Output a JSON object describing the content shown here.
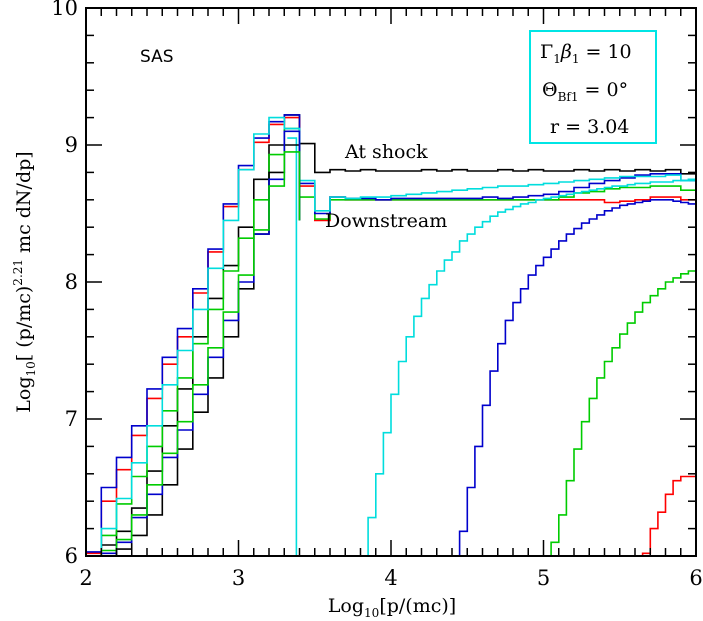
{
  "chart_data": {
    "type": "line",
    "step": true,
    "xlabel": {
      "prefix": "Log",
      "sub": "10",
      "main": "[p/(mc)]"
    },
    "ylabel": {
      "prefix": "Log",
      "sub": "10",
      "main1": "[ (p/mc)",
      "sup": "2.21",
      "main2": " mc dN/dp]"
    },
    "xlim": [
      2,
      6
    ],
    "ylim": [
      6,
      10
    ],
    "xticks": [
      2,
      3,
      4,
      5,
      6
    ],
    "yticks": [
      6,
      7,
      8,
      9,
      10
    ],
    "grid": false,
    "corner_label": "SAS",
    "annotations": [
      {
        "text": "At shock"
      },
      {
        "text": "Downstream"
      }
    ],
    "legend_box": {
      "border_color": "#00e5e5",
      "line1": {
        "g": "Γ",
        "g_sub": "1",
        "b": "β",
        "b_sub": "1",
        "value": " = 10"
      },
      "line2": {
        "t": "Θ",
        "t_sub": "Bf1",
        "value": " = 0°"
      },
      "line3": {
        "value": "r = 3.04"
      }
    },
    "series": [
      {
        "color": "#000000",
        "x": [
          2.0,
          2.1,
          2.2,
          2.3,
          2.4,
          2.5,
          2.6,
          2.7,
          2.8,
          2.9,
          3.0,
          3.1,
          3.2,
          3.3,
          3.4,
          3.5,
          3.6,
          3.7,
          3.8,
          3.9,
          4.0,
          4.1,
          4.2,
          4.3,
          4.4,
          4.5,
          4.6,
          4.7,
          4.8,
          4.9,
          5.0,
          5.1,
          5.2,
          5.3,
          5.4,
          5.5,
          5.6,
          5.7,
          5.8,
          5.9,
          6.0
        ],
        "y": [
          6.0,
          6.08,
          6.18,
          6.35,
          6.62,
          6.95,
          7.22,
          7.6,
          7.88,
          8.12,
          8.4,
          8.75,
          9.0,
          9.22,
          9.01,
          8.8,
          8.82,
          8.81,
          8.82,
          8.81,
          8.81,
          8.81,
          8.82,
          8.81,
          8.82,
          8.81,
          8.81,
          8.82,
          8.81,
          8.82,
          8.81,
          8.81,
          8.82,
          8.81,
          8.82,
          8.81,
          8.82,
          8.81,
          8.82,
          8.79,
          8.6
        ]
      },
      {
        "color": "#ff0000",
        "x": [
          2.0,
          2.1,
          2.2,
          2.3,
          2.4,
          2.5,
          2.6,
          2.7,
          2.8,
          2.9,
          3.0,
          3.1,
          3.2,
          3.3,
          3.4,
          3.5,
          3.6,
          3.7,
          3.8,
          3.9,
          4.0,
          4.1,
          4.2,
          4.3,
          4.4,
          4.5,
          4.6,
          4.7,
          4.8,
          4.9,
          5.0,
          5.1,
          5.2,
          5.3,
          5.4,
          5.5,
          5.6,
          5.7,
          5.8,
          5.9,
          6.0
        ],
        "y": [
          6.02,
          6.4,
          6.63,
          6.88,
          7.15,
          7.4,
          7.6,
          7.92,
          8.22,
          8.55,
          8.82,
          9.02,
          9.15,
          9.2,
          8.7,
          8.45,
          8.62,
          8.6,
          8.6,
          8.6,
          8.6,
          8.6,
          8.6,
          8.6,
          8.6,
          8.6,
          8.6,
          8.6,
          8.6,
          8.6,
          8.6,
          8.6,
          8.6,
          8.6,
          8.58,
          8.59,
          8.6,
          8.62,
          8.62,
          8.6,
          8.5
        ]
      },
      {
        "color": "#00cc00",
        "x": [
          2.0,
          2.1,
          2.2,
          2.3,
          2.4,
          2.5,
          2.6,
          2.7,
          2.8,
          2.9,
          3.0,
          3.1,
          3.2,
          3.3,
          3.4,
          3.5,
          3.6,
          3.7,
          3.8,
          3.9,
          4.0,
          4.1,
          4.2,
          4.3,
          4.4,
          4.5,
          4.6,
          4.7,
          4.8,
          4.9,
          5.0,
          5.1,
          5.2,
          5.3,
          5.4,
          5.5,
          5.6,
          5.7,
          5.8,
          5.9,
          6.0
        ],
        "y": [
          6.0,
          6.15,
          6.38,
          6.58,
          6.8,
          7.06,
          7.3,
          7.55,
          7.8,
          8.08,
          8.32,
          8.6,
          8.93,
          9.12,
          8.62,
          8.46,
          8.6,
          8.6,
          8.6,
          8.6,
          8.6,
          8.6,
          8.6,
          8.6,
          8.6,
          8.6,
          8.6,
          8.6,
          8.6,
          8.6,
          8.6,
          8.62,
          8.65,
          8.66,
          8.68,
          8.69,
          8.69,
          8.7,
          8.7,
          8.67,
          8.65
        ]
      },
      {
        "color": "#0000cc",
        "x": [
          2.0,
          2.1,
          2.2,
          2.3,
          2.4,
          2.5,
          2.6,
          2.7,
          2.8,
          2.9,
          3.0,
          3.1,
          3.2,
          3.3,
          3.4,
          3.5,
          3.6,
          3.7,
          3.8,
          3.9,
          4.0,
          4.1,
          4.2,
          4.3,
          4.4,
          4.5,
          4.6,
          4.7,
          4.8,
          4.9,
          5.0,
          5.1,
          5.2,
          5.3,
          5.4,
          5.5,
          5.6,
          5.7,
          5.8,
          5.9,
          6.0
        ],
        "y": [
          6.03,
          6.5,
          6.72,
          6.95,
          7.22,
          7.45,
          7.66,
          7.95,
          8.24,
          8.57,
          8.85,
          9.05,
          9.17,
          9.22,
          8.72,
          8.5,
          8.62,
          8.61,
          8.61,
          8.6,
          8.61,
          8.61,
          8.61,
          8.61,
          8.61,
          8.61,
          8.62,
          8.61,
          8.62,
          8.63,
          8.64,
          8.66,
          8.69,
          8.72,
          8.74,
          8.76,
          8.78,
          8.79,
          8.79,
          8.74,
          8.65
        ]
      },
      {
        "color": "#00dddd",
        "x": [
          2.0,
          2.1,
          2.2,
          2.3,
          2.4,
          2.5,
          2.6,
          2.7,
          2.8,
          2.9,
          3.0,
          3.1,
          3.2,
          3.3,
          3.4,
          3.5,
          3.6,
          3.7,
          3.8,
          3.9,
          4.0,
          4.1,
          4.2,
          4.3,
          4.4,
          4.5,
          4.6,
          4.7,
          4.8,
          4.9,
          5.0,
          5.1,
          5.2,
          5.3,
          5.4,
          5.5,
          5.6,
          5.7,
          5.8,
          5.9,
          6.0
        ],
        "y": [
          6.0,
          6.2,
          6.42,
          6.68,
          6.95,
          7.25,
          7.5,
          7.8,
          8.1,
          8.45,
          8.82,
          9.08,
          9.2,
          9.12,
          8.74,
          8.52,
          8.62,
          8.61,
          8.62,
          8.62,
          8.63,
          8.64,
          8.65,
          8.66,
          8.67,
          8.68,
          8.69,
          8.7,
          8.7,
          8.71,
          8.72,
          8.73,
          8.74,
          8.75,
          8.76,
          8.77,
          8.77,
          8.77,
          8.78,
          8.74,
          8.66
        ]
      },
      {
        "color": "#00dddd",
        "x": [
          3.32,
          3.36,
          3.38,
          3.38
        ],
        "y": [
          9.05,
          9.05,
          9.05,
          6.0
        ]
      },
      {
        "color": "#000000",
        "x": [
          2.0,
          2.1,
          2.2,
          2.3,
          2.4,
          2.5,
          2.6,
          2.7,
          2.8,
          2.9,
          3.0,
          3.1,
          3.2,
          3.3,
          3.4
        ],
        "y": [
          6.0,
          6.0,
          6.05,
          6.15,
          6.3,
          6.52,
          6.78,
          7.05,
          7.3,
          7.6,
          7.95,
          8.35,
          8.8,
          9.0,
          8.45
        ]
      },
      {
        "color": "#0000cc",
        "x": [
          2.0,
          2.1,
          2.2,
          2.3,
          2.4,
          2.5,
          2.6,
          2.7,
          2.8,
          2.9,
          3.0,
          3.1,
          3.2,
          3.3,
          3.4
        ],
        "y": [
          6.0,
          6.02,
          6.1,
          6.28,
          6.45,
          6.72,
          6.92,
          7.18,
          7.45,
          7.72,
          8.0,
          8.35,
          8.75,
          9.1,
          8.45
        ]
      },
      {
        "color": "#00cc00",
        "x": [
          2.0,
          2.1,
          2.2,
          2.3,
          2.4,
          2.5,
          2.6,
          2.7,
          2.8,
          2.9,
          3.0,
          3.1,
          3.2,
          3.3,
          3.4
        ],
        "y": [
          6.0,
          6.04,
          6.12,
          6.3,
          6.52,
          6.75,
          6.98,
          7.25,
          7.52,
          7.78,
          8.05,
          8.38,
          8.7,
          8.95,
          8.45
        ]
      },
      {
        "color": "#00dddd",
        "x": [
          3.8,
          3.85,
          3.9,
          3.95,
          4.0,
          4.05,
          4.1,
          4.15,
          4.2,
          4.25,
          4.3,
          4.35,
          4.4,
          4.45,
          4.5,
          4.55,
          4.6,
          4.65,
          4.7,
          4.75,
          4.8,
          4.85,
          4.9,
          4.95,
          5.0,
          5.05,
          5.1,
          5.15,
          5.2,
          5.25,
          5.3,
          5.35,
          5.4,
          5.45,
          5.5,
          5.55,
          5.6,
          5.65,
          5.7,
          5.75,
          5.8,
          5.85,
          5.9,
          5.95,
          6.0
        ],
        "y": [
          6.0,
          6.28,
          6.6,
          6.9,
          7.18,
          7.42,
          7.6,
          7.75,
          7.88,
          7.98,
          8.08,
          8.16,
          8.22,
          8.3,
          8.35,
          8.4,
          8.44,
          8.48,
          8.51,
          8.53,
          8.55,
          8.57,
          8.58,
          8.6,
          8.61,
          8.62,
          8.63,
          8.64,
          8.65,
          8.66,
          8.67,
          8.68,
          8.69,
          8.7,
          8.7,
          8.71,
          8.72,
          8.72,
          8.73,
          8.73,
          8.73,
          8.74,
          8.74,
          8.75,
          8.62
        ]
      },
      {
        "color": "#0000cc",
        "x": [
          4.4,
          4.45,
          4.5,
          4.55,
          4.6,
          4.65,
          4.7,
          4.75,
          4.8,
          4.85,
          4.9,
          4.95,
          5.0,
          5.05,
          5.1,
          5.15,
          5.2,
          5.25,
          5.3,
          5.35,
          5.4,
          5.45,
          5.5,
          5.55,
          5.6,
          5.65,
          5.7,
          5.75,
          5.8,
          5.85,
          5.9,
          5.95,
          6.0
        ],
        "y": [
          6.0,
          6.18,
          6.5,
          6.8,
          7.1,
          7.35,
          7.55,
          7.72,
          7.85,
          7.95,
          8.05,
          8.12,
          8.18,
          8.24,
          8.3,
          8.35,
          8.39,
          8.43,
          8.46,
          8.49,
          8.52,
          8.54,
          8.56,
          8.57,
          8.58,
          8.59,
          8.6,
          8.6,
          8.6,
          8.59,
          8.58,
          8.57,
          8.55
        ]
      },
      {
        "color": "#00cc00",
        "x": [
          5.0,
          5.05,
          5.1,
          5.15,
          5.2,
          5.25,
          5.3,
          5.35,
          5.4,
          5.45,
          5.5,
          5.55,
          5.6,
          5.65,
          5.7,
          5.75,
          5.8,
          5.85,
          5.9,
          5.95,
          6.0
        ],
        "y": [
          6.0,
          6.1,
          6.3,
          6.55,
          6.78,
          6.98,
          7.15,
          7.3,
          7.42,
          7.52,
          7.62,
          7.7,
          7.78,
          7.85,
          7.9,
          7.95,
          8.0,
          8.03,
          8.06,
          8.08,
          8.1
        ]
      },
      {
        "color": "#ff0000",
        "x": [
          5.6,
          5.65,
          5.7,
          5.75,
          5.8,
          5.85,
          5.9,
          5.95,
          6.0
        ],
        "y": [
          6.0,
          6.02,
          6.2,
          6.32,
          6.45,
          6.55,
          6.58,
          6.58,
          6.58
        ]
      }
    ]
  }
}
